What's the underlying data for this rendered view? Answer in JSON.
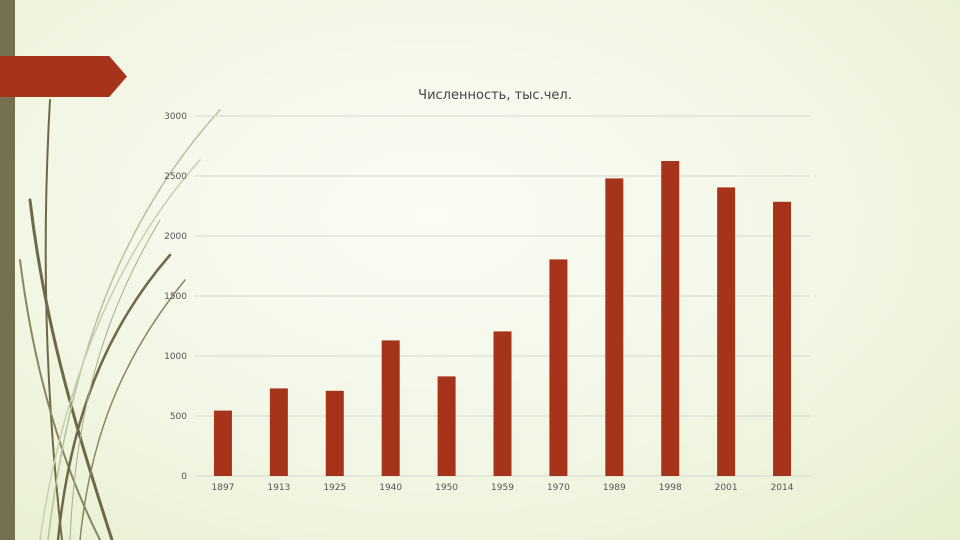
{
  "chart_data": {
    "type": "bar",
    "title": "Численность, тыс.чел.",
    "categories": [
      "1897",
      "1913",
      "1925",
      "1940",
      "1950",
      "1959",
      "1970",
      "1989",
      "1998",
      "2001",
      "2014"
    ],
    "values": [
      545,
      730,
      710,
      1130,
      830,
      1205,
      1805,
      2480,
      2625,
      2405,
      2285
    ],
    "ylim": [
      0,
      3000
    ],
    "yticks": [
      0,
      500,
      1000,
      1500,
      2000,
      2500,
      3000
    ],
    "grid": true,
    "legend": "none",
    "xlabel": "",
    "ylabel": ""
  },
  "colors": {
    "bar": "#a5341a",
    "grid": "#d8d8d0",
    "accent": "#a5341a",
    "sidebar": "#75704f"
  }
}
